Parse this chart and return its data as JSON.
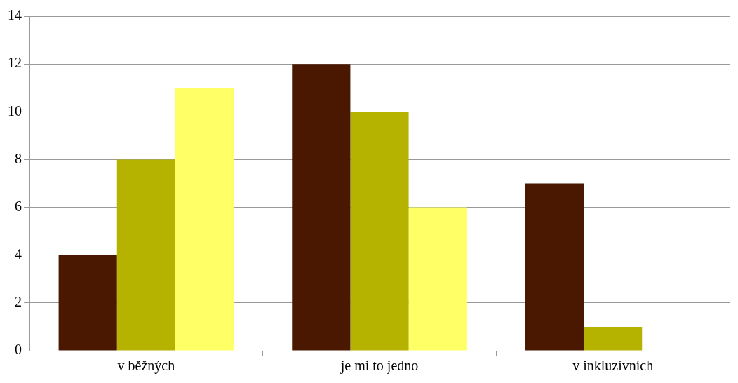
{
  "chart_data": {
    "type": "bar",
    "categories": [
      "v běžných",
      "je mi to jedno",
      "v inkluzívních"
    ],
    "series": [
      {
        "color": "#4a1800",
        "values": [
          4,
          12,
          7
        ]
      },
      {
        "color": "#b5b300",
        "values": [
          8,
          10,
          1
        ]
      },
      {
        "color": "#ffff66",
        "values": [
          11,
          6,
          0
        ]
      }
    ],
    "ylim": [
      0,
      14
    ],
    "yticks": [
      0,
      2,
      4,
      6,
      8,
      10,
      12,
      14
    ],
    "grid": "y",
    "legend": false
  }
}
